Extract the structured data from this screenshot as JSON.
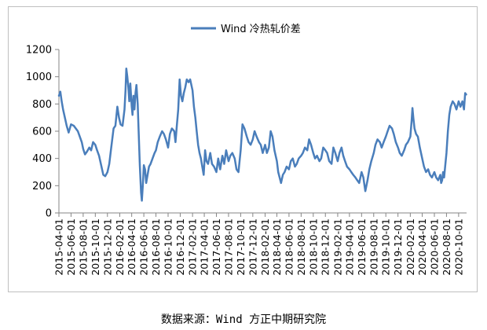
{
  "caption": "数据来源：Wind 方正中期研究院",
  "chart_data": {
    "type": "line",
    "legend_position": "top",
    "grid": false,
    "ylim": [
      0,
      1200
    ],
    "yticks": [
      0,
      200,
      400,
      600,
      800,
      1000,
      1200
    ],
    "xlim": [
      "2015-04-01",
      "2020-11-10"
    ],
    "xticks": [
      "2015-04-01",
      "2015-06-01",
      "2015-08-01",
      "2015-10-01",
      "2015-12-01",
      "2016-02-01",
      "2016-04-01",
      "2016-06-01",
      "2016-08-01",
      "2016-10-01",
      "2016-12-01",
      "2017-02-01",
      "2017-04-01",
      "2017-06-01",
      "2017-08-01",
      "2017-10-01",
      "2017-12-01",
      "2018-02-01",
      "2018-04-01",
      "2018-06-01",
      "2018-08-01",
      "2018-10-01",
      "2018-12-01",
      "2019-02-01",
      "2019-04-01",
      "2019-06-01",
      "2019-08-01",
      "2019-10-01",
      "2019-12-01",
      "2020-02-01",
      "2020-04-01",
      "2020-06-01",
      "2020-08-01",
      "2020-10-01"
    ],
    "series": [
      {
        "name": "Wind 冷热轧价差",
        "color": "#4a7ebb",
        "points": [
          [
            "2015-04-01",
            860
          ],
          [
            "2015-04-08",
            890
          ],
          [
            "2015-04-15",
            820
          ],
          [
            "2015-04-22",
            760
          ],
          [
            "2015-05-01",
            700
          ],
          [
            "2015-05-10",
            640
          ],
          [
            "2015-05-20",
            590
          ],
          [
            "2015-06-01",
            650
          ],
          [
            "2015-06-15",
            640
          ],
          [
            "2015-06-25",
            620
          ],
          [
            "2015-07-05",
            600
          ],
          [
            "2015-07-15",
            560
          ],
          [
            "2015-07-25",
            520
          ],
          [
            "2015-08-01",
            470
          ],
          [
            "2015-08-10",
            430
          ],
          [
            "2015-08-20",
            450
          ],
          [
            "2015-09-01",
            480
          ],
          [
            "2015-09-10",
            460
          ],
          [
            "2015-09-20",
            520
          ],
          [
            "2015-10-01",
            500
          ],
          [
            "2015-10-10",
            460
          ],
          [
            "2015-10-20",
            420
          ],
          [
            "2015-11-01",
            340
          ],
          [
            "2015-11-10",
            280
          ],
          [
            "2015-11-20",
            270
          ],
          [
            "2015-12-01",
            300
          ],
          [
            "2015-12-10",
            360
          ],
          [
            "2015-12-20",
            480
          ],
          [
            "2016-01-01",
            620
          ],
          [
            "2016-01-10",
            640
          ],
          [
            "2016-01-20",
            780
          ],
          [
            "2016-01-28",
            700
          ],
          [
            "2016-02-05",
            650
          ],
          [
            "2016-02-15",
            640
          ],
          [
            "2016-02-25",
            760
          ],
          [
            "2016-03-01",
            900
          ],
          [
            "2016-03-05",
            1060
          ],
          [
            "2016-03-10",
            1000
          ],
          [
            "2016-03-15",
            920
          ],
          [
            "2016-03-20",
            820
          ],
          [
            "2016-03-25",
            950
          ],
          [
            "2016-04-01",
            780
          ],
          [
            "2016-04-05",
            720
          ],
          [
            "2016-04-10",
            860
          ],
          [
            "2016-04-15",
            760
          ],
          [
            "2016-04-20",
            880
          ],
          [
            "2016-04-25",
            940
          ],
          [
            "2016-05-01",
            800
          ],
          [
            "2016-05-06",
            600
          ],
          [
            "2016-05-12",
            350
          ],
          [
            "2016-05-18",
            150
          ],
          [
            "2016-05-22",
            90
          ],
          [
            "2016-05-27",
            200
          ],
          [
            "2016-06-01",
            350
          ],
          [
            "2016-06-07",
            320
          ],
          [
            "2016-06-13",
            220
          ],
          [
            "2016-06-20",
            280
          ],
          [
            "2016-06-27",
            340
          ],
          [
            "2016-07-05",
            360
          ],
          [
            "2016-07-15",
            400
          ],
          [
            "2016-07-25",
            440
          ],
          [
            "2016-08-01",
            460
          ],
          [
            "2016-08-10",
            520
          ],
          [
            "2016-08-20",
            560
          ],
          [
            "2016-09-01",
            600
          ],
          [
            "2016-09-10",
            580
          ],
          [
            "2016-09-20",
            540
          ],
          [
            "2016-10-01",
            480
          ],
          [
            "2016-10-10",
            580
          ],
          [
            "2016-10-20",
            620
          ],
          [
            "2016-11-01",
            600
          ],
          [
            "2016-11-07",
            520
          ],
          [
            "2016-11-14",
            640
          ],
          [
            "2016-11-21",
            760
          ],
          [
            "2016-11-28",
            980
          ],
          [
            "2016-12-05",
            860
          ],
          [
            "2016-12-12",
            820
          ],
          [
            "2016-12-19",
            880
          ],
          [
            "2016-12-26",
            920
          ],
          [
            "2017-01-03",
            980
          ],
          [
            "2017-01-12",
            960
          ],
          [
            "2017-01-20",
            980
          ],
          [
            "2017-02-01",
            900
          ],
          [
            "2017-02-08",
            780
          ],
          [
            "2017-02-15",
            700
          ],
          [
            "2017-02-22",
            600
          ],
          [
            "2017-03-01",
            500
          ],
          [
            "2017-03-08",
            440
          ],
          [
            "2017-03-15",
            400
          ],
          [
            "2017-03-22",
            340
          ],
          [
            "2017-03-29",
            280
          ],
          [
            "2017-04-05",
            460
          ],
          [
            "2017-04-12",
            380
          ],
          [
            "2017-04-20",
            360
          ],
          [
            "2017-05-01",
            440
          ],
          [
            "2017-05-10",
            360
          ],
          [
            "2017-05-20",
            340
          ],
          [
            "2017-06-01",
            300
          ],
          [
            "2017-06-10",
            400
          ],
          [
            "2017-06-20",
            320
          ],
          [
            "2017-07-01",
            420
          ],
          [
            "2017-07-10",
            360
          ],
          [
            "2017-07-20",
            460
          ],
          [
            "2017-08-01",
            380
          ],
          [
            "2017-08-10",
            420
          ],
          [
            "2017-08-20",
            440
          ],
          [
            "2017-09-01",
            400
          ],
          [
            "2017-09-10",
            320
          ],
          [
            "2017-09-20",
            300
          ],
          [
            "2017-10-01",
            460
          ],
          [
            "2017-10-10",
            650
          ],
          [
            "2017-10-20",
            620
          ],
          [
            "2017-11-01",
            560
          ],
          [
            "2017-11-10",
            520
          ],
          [
            "2017-11-20",
            500
          ],
          [
            "2017-12-01",
            540
          ],
          [
            "2017-12-10",
            600
          ],
          [
            "2017-12-20",
            560
          ],
          [
            "2018-01-01",
            520
          ],
          [
            "2018-01-10",
            500
          ],
          [
            "2018-01-20",
            440
          ],
          [
            "2018-02-01",
            500
          ],
          [
            "2018-02-10",
            440
          ],
          [
            "2018-02-20",
            480
          ],
          [
            "2018-03-01",
            600
          ],
          [
            "2018-03-10",
            560
          ],
          [
            "2018-03-20",
            460
          ],
          [
            "2018-04-01",
            380
          ],
          [
            "2018-04-08",
            300
          ],
          [
            "2018-04-15",
            260
          ],
          [
            "2018-04-22",
            220
          ],
          [
            "2018-05-01",
            280
          ],
          [
            "2018-05-10",
            300
          ],
          [
            "2018-05-20",
            340
          ],
          [
            "2018-06-01",
            320
          ],
          [
            "2018-06-10",
            380
          ],
          [
            "2018-06-20",
            400
          ],
          [
            "2018-07-01",
            340
          ],
          [
            "2018-07-10",
            360
          ],
          [
            "2018-07-20",
            400
          ],
          [
            "2018-08-01",
            420
          ],
          [
            "2018-08-10",
            440
          ],
          [
            "2018-08-20",
            480
          ],
          [
            "2018-09-01",
            460
          ],
          [
            "2018-09-10",
            540
          ],
          [
            "2018-09-20",
            500
          ],
          [
            "2018-10-01",
            440
          ],
          [
            "2018-10-10",
            400
          ],
          [
            "2018-10-20",
            420
          ],
          [
            "2018-11-01",
            380
          ],
          [
            "2018-11-10",
            400
          ],
          [
            "2018-11-20",
            480
          ],
          [
            "2018-12-01",
            460
          ],
          [
            "2018-12-10",
            440
          ],
          [
            "2018-12-20",
            380
          ],
          [
            "2019-01-01",
            360
          ],
          [
            "2019-01-10",
            480
          ],
          [
            "2019-01-20",
            440
          ],
          [
            "2019-02-01",
            380
          ],
          [
            "2019-02-10",
            440
          ],
          [
            "2019-02-20",
            480
          ],
          [
            "2019-03-01",
            420
          ],
          [
            "2019-03-10",
            380
          ],
          [
            "2019-03-20",
            340
          ],
          [
            "2019-04-01",
            320
          ],
          [
            "2019-04-10",
            300
          ],
          [
            "2019-04-20",
            280
          ],
          [
            "2019-05-01",
            260
          ],
          [
            "2019-05-10",
            240
          ],
          [
            "2019-05-20",
            220
          ],
          [
            "2019-06-01",
            300
          ],
          [
            "2019-06-10",
            260
          ],
          [
            "2019-06-20",
            160
          ],
          [
            "2019-07-01",
            240
          ],
          [
            "2019-07-10",
            320
          ],
          [
            "2019-07-20",
            380
          ],
          [
            "2019-08-01",
            440
          ],
          [
            "2019-08-10",
            500
          ],
          [
            "2019-08-20",
            540
          ],
          [
            "2019-09-01",
            520
          ],
          [
            "2019-09-10",
            480
          ],
          [
            "2019-09-20",
            520
          ],
          [
            "2019-10-01",
            560
          ],
          [
            "2019-10-10",
            600
          ],
          [
            "2019-10-20",
            640
          ],
          [
            "2019-11-01",
            620
          ],
          [
            "2019-11-10",
            580
          ],
          [
            "2019-11-20",
            520
          ],
          [
            "2019-12-01",
            480
          ],
          [
            "2019-12-10",
            440
          ],
          [
            "2019-12-20",
            420
          ],
          [
            "2020-01-01",
            460
          ],
          [
            "2020-01-10",
            500
          ],
          [
            "2020-01-20",
            520
          ],
          [
            "2020-02-01",
            560
          ],
          [
            "2020-02-08",
            680
          ],
          [
            "2020-02-12",
            770
          ],
          [
            "2020-02-16",
            700
          ],
          [
            "2020-02-22",
            620
          ],
          [
            "2020-03-01",
            580
          ],
          [
            "2020-03-10",
            560
          ],
          [
            "2020-03-20",
            480
          ],
          [
            "2020-04-01",
            400
          ],
          [
            "2020-04-10",
            340
          ],
          [
            "2020-04-20",
            300
          ],
          [
            "2020-05-01",
            320
          ],
          [
            "2020-05-10",
            280
          ],
          [
            "2020-05-20",
            260
          ],
          [
            "2020-06-01",
            300
          ],
          [
            "2020-06-10",
            260
          ],
          [
            "2020-06-20",
            240
          ],
          [
            "2020-07-01",
            280
          ],
          [
            "2020-07-05",
            220
          ],
          [
            "2020-07-10",
            240
          ],
          [
            "2020-07-15",
            300
          ],
          [
            "2020-07-20",
            260
          ],
          [
            "2020-07-25",
            340
          ],
          [
            "2020-08-01",
            440
          ],
          [
            "2020-08-08",
            600
          ],
          [
            "2020-08-15",
            720
          ],
          [
            "2020-08-22",
            780
          ],
          [
            "2020-09-01",
            820
          ],
          [
            "2020-09-10",
            800
          ],
          [
            "2020-09-20",
            760
          ],
          [
            "2020-10-01",
            820
          ],
          [
            "2020-10-10",
            780
          ],
          [
            "2020-10-20",
            820
          ],
          [
            "2020-10-28",
            760
          ],
          [
            "2020-11-03",
            880
          ],
          [
            "2020-11-08",
            870
          ]
        ]
      }
    ]
  }
}
